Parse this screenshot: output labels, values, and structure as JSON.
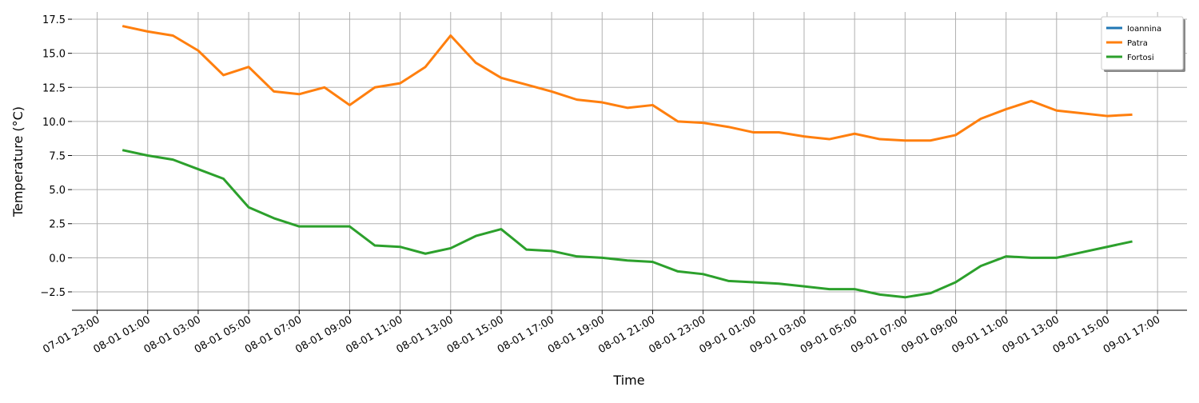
{
  "chart_data": {
    "type": "line",
    "x": [
      "08-01 00:00",
      "08-01 01:00",
      "08-01 02:00",
      "08-01 03:00",
      "08-01 04:00",
      "08-01 05:00",
      "08-01 06:00",
      "08-01 07:00",
      "08-01 08:00",
      "08-01 09:00",
      "08-01 10:00",
      "08-01 11:00",
      "08-01 12:00",
      "08-01 13:00",
      "08-01 14:00",
      "08-01 15:00",
      "08-01 16:00",
      "08-01 17:00",
      "08-01 18:00",
      "08-01 19:00",
      "08-01 20:00",
      "08-01 21:00",
      "08-01 22:00",
      "08-01 23:00",
      "09-01 00:00",
      "09-01 01:00",
      "09-01 02:00",
      "09-01 03:00",
      "09-01 04:00",
      "09-01 05:00",
      "09-01 06:00",
      "09-01 07:00",
      "09-01 08:00",
      "09-01 09:00",
      "09-01 10:00",
      "09-01 11:00",
      "09-01 12:00",
      "09-01 13:00",
      "09-01 14:00",
      "09-01 15:00",
      "09-01 16:00"
    ],
    "series": [
      {
        "name": "Ioannina",
        "color": "#1f77b4",
        "values": [
          null,
          null,
          null,
          null,
          null,
          null,
          null,
          null,
          null,
          null,
          null,
          null,
          null,
          null,
          null,
          null,
          null,
          null,
          null,
          null,
          null,
          null,
          null,
          null,
          null,
          null,
          null,
          null,
          null,
          null,
          null,
          null,
          null,
          null,
          null,
          null,
          null,
          null,
          null,
          null,
          null
        ]
      },
      {
        "name": "Patra",
        "color": "#ff7f0e",
        "values": [
          17.0,
          16.6,
          16.3,
          15.2,
          13.4,
          14.0,
          12.2,
          12.0,
          12.5,
          11.2,
          12.5,
          12.8,
          14.0,
          16.3,
          14.3,
          13.2,
          12.7,
          12.2,
          11.6,
          11.4,
          11.0,
          11.2,
          10.0,
          9.9,
          9.6,
          9.2,
          9.2,
          8.9,
          8.7,
          9.1,
          8.7,
          8.6,
          8.6,
          9.0,
          10.2,
          10.9,
          11.5,
          10.8,
          10.6,
          10.4,
          10.5
        ]
      },
      {
        "name": "Fortosi",
        "color": "#2ca02c",
        "values": [
          7.9,
          7.5,
          7.2,
          6.5,
          5.8,
          3.7,
          2.9,
          2.3,
          2.3,
          2.3,
          0.9,
          0.8,
          0.3,
          0.7,
          1.6,
          2.1,
          0.6,
          0.5,
          0.1,
          0.0,
          -0.2,
          -0.3,
          -1.0,
          -1.2,
          -1.7,
          -1.8,
          -1.9,
          -2.1,
          -2.3,
          -2.3,
          -2.7,
          -2.9,
          -2.6,
          -1.8,
          -0.6,
          0.1,
          0.0,
          0.0,
          0.4,
          0.8,
          1.2
        ]
      }
    ],
    "xlabel": "Time",
    "ylabel": "Temperature (°C)",
    "xlim": [
      "07-01 22:00",
      "09-01 18:10"
    ],
    "xticks": [
      "07-01 23:00",
      "08-01 01:00",
      "08-01 03:00",
      "08-01 05:00",
      "08-01 07:00",
      "08-01 09:00",
      "08-01 11:00",
      "08-01 13:00",
      "08-01 15:00",
      "08-01 17:00",
      "08-01 19:00",
      "08-01 21:00",
      "08-01 23:00",
      "09-01 01:00",
      "09-01 03:00",
      "09-01 05:00",
      "09-01 07:00",
      "09-01 09:00",
      "09-01 11:00",
      "09-01 13:00",
      "09-01 15:00",
      "09-01 17:00"
    ],
    "ylim": [
      -3.85,
      18.03
    ],
    "yticks": [
      {
        "value": -2.5,
        "label": "−2.5"
      },
      {
        "value": 0,
        "label": "0.0"
      },
      2.5,
      {
        "value": 5,
        "label": "5.0"
      },
      7.5,
      {
        "value": 10,
        "label": "10.0"
      },
      12.5,
      {
        "value": 15,
        "label": "15.0"
      },
      17.5
    ],
    "grid": true,
    "legend": "upper right"
  }
}
